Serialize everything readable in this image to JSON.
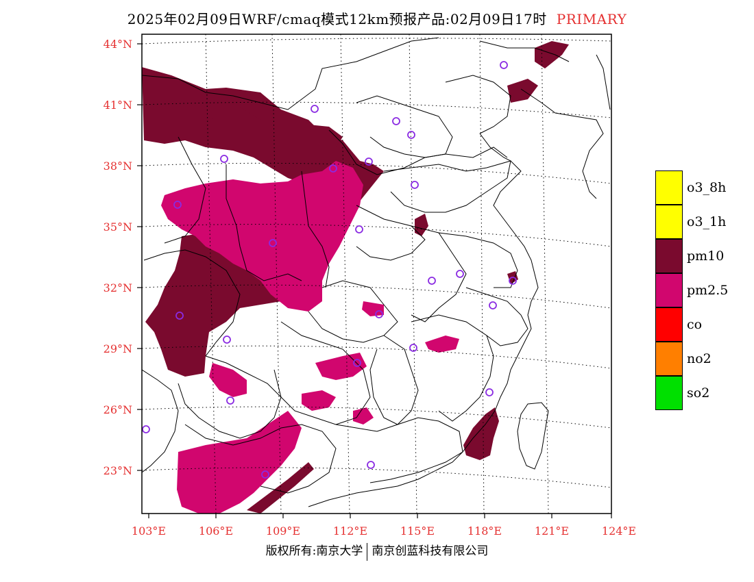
{
  "title": {
    "main": "2025年02月09日WRF/cmaq模式12km预报产品:02月09日17时",
    "tag": "PRIMARY"
  },
  "axes": {
    "lat_labels": [
      "44°N",
      "41°N",
      "38°N",
      "35°N",
      "32°N",
      "29°N",
      "26°N",
      "23°N"
    ],
    "lon_labels": [
      "103°E",
      "106°E",
      "109°E",
      "112°E",
      "115°E",
      "118°E",
      "121°E",
      "124°E"
    ]
  },
  "legend": [
    {
      "label": "o3_8h",
      "color": "#ffff00"
    },
    {
      "label": "o3_1h",
      "color": "#ffff00"
    },
    {
      "label": "pm10",
      "color": "#7a0a2e"
    },
    {
      "label": "pm2.5",
      "color": "#d1066e"
    },
    {
      "label": "co",
      "color": "#ff0000"
    },
    {
      "label": "no2",
      "color": "#ff7f00"
    },
    {
      "label": "so2",
      "color": "#00e000"
    }
  ],
  "colors": {
    "pm10": "#7a0a2e",
    "pm25": "#d1066e",
    "station": "#8a2be2",
    "axis_label": "#e53030"
  },
  "footer": {
    "left": "版权所有:南京大学",
    "right": "南京创蓝科技有限公司"
  }
}
